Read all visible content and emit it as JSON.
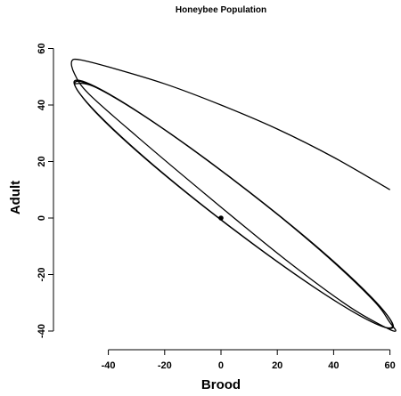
{
  "chart_data": {
    "type": "line",
    "title": "Honeybee Population",
    "x_label": "Brood",
    "y_label": "Adult",
    "xlim": [
      -58.54,
      62.34
    ],
    "ylim": [
      -44.41,
      64.57
    ],
    "xticks": [
      -40,
      -20,
      0,
      20,
      40,
      60
    ],
    "yticks": [
      -40,
      -20,
      0,
      20,
      40,
      60
    ],
    "grid": false,
    "color": "#000000",
    "trajectory": {
      "x": [
        60,
        40,
        20,
        0,
        -20,
        -40,
        -50,
        -53,
        -52,
        -47,
        -30,
        -5,
        22,
        45,
        58,
        62,
        60,
        53.5,
        33,
        4.5,
        -24,
        -44.6,
        -52.2,
        -44.5,
        -23.9,
        4.5,
        32.9,
        53.6,
        61.2,
        53.5,
        32.8,
        4.5,
        -23.8,
        -44.4,
        -52,
        -44.4,
        -23.8,
        4.5,
        32.8,
        53.4,
        61,
        53.4,
        32.8,
        4.5,
        -23.8,
        -44.4,
        -52
      ],
      "y": [
        10,
        21.5,
        31.5,
        40,
        47.5,
        53.5,
        56,
        55.5,
        51,
        44,
        29,
        8,
        -14,
        -31,
        -38.5,
        -40,
        -37,
        -28.5,
        -9.5,
        13.5,
        34,
        46.5,
        48,
        37.4,
        18.5,
        -4.1,
        -24.4,
        -36.8,
        -38.3,
        -28.1,
        -9.2,
        13.4,
        33.8,
        46.2,
        47.6,
        37.5,
        18.6,
        -4,
        -24.3,
        -36.7,
        -38.1,
        -28,
        -9.1,
        13.5,
        33.8,
        46.2,
        47.6
      ]
    },
    "equilibrium": {
      "x": [
        0
      ],
      "y": [
        0
      ]
    }
  }
}
